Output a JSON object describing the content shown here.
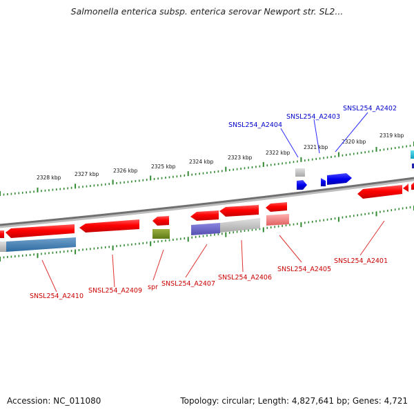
{
  "title": "Salmonella enterica subsp. enterica serovar Newport str. SL2...",
  "footer": {
    "accession": "Accession: NC_011080",
    "summary": "Topology: circular; Length: 4,827,641 bp; Genes: 4,721"
  },
  "colors": {
    "forward_label": "#0000cc",
    "reverse_label": "#cc0000",
    "backbone": "#7a7a7a",
    "tick": "#2f8a2f"
  },
  "scale_labels": [
    "2328 kbp",
    "2327 kbp",
    "2326 kbp",
    "2325 kbp",
    "2324 kbp",
    "2323 kbp",
    "2322 kbp",
    "2321 kbp",
    "2320 kbp",
    "2319 kbp"
  ],
  "forward_genes": [
    "SNSL254_A2404",
    "SNSL254_A2403",
    "SNSL254_A2402"
  ],
  "reverse_genes": [
    "SNSL254_A2410",
    "SNSL254_A2409",
    "spr",
    "SNSL254_A2407",
    "SNSL254_A2406",
    "SNSL254_A2405",
    "SNSL254_A2401"
  ]
}
